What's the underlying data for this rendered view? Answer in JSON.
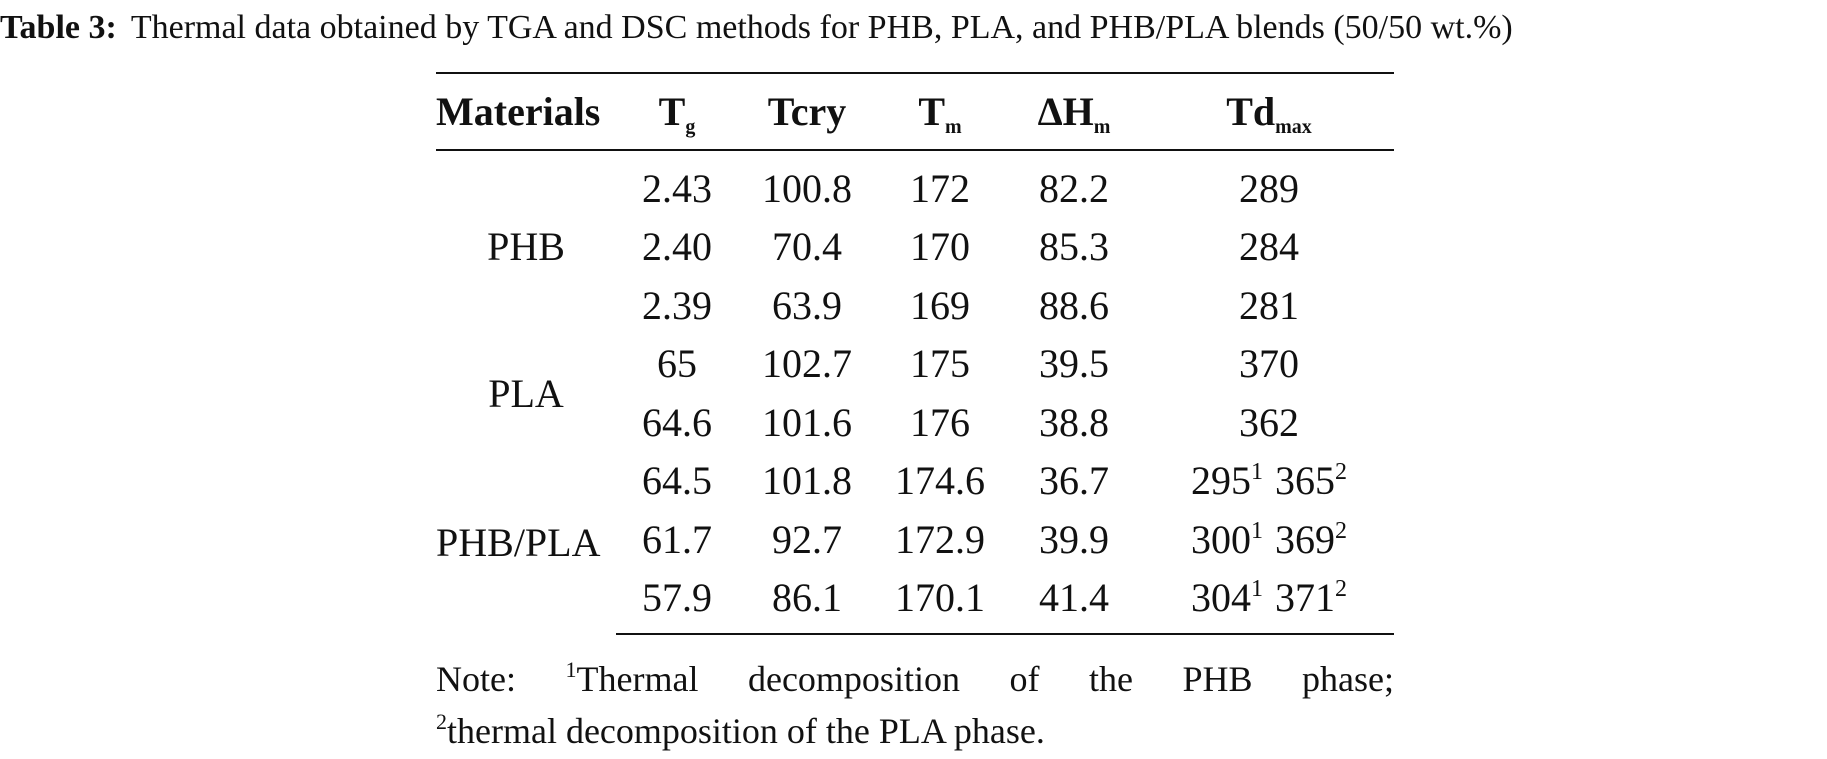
{
  "caption": {
    "label": "Table 3:",
    "text": "Thermal data obtained by TGA and DSC methods for PHB, PLA, and PHB/PLA blends (50/50 wt.%)"
  },
  "table": {
    "headers": {
      "materials": "Materials",
      "tg_main": "T",
      "tg_sub": "g",
      "tcry": "Tcry",
      "tm_main": "T",
      "tm_sub": "m",
      "dhm_main": "ΔH",
      "dhm_sub": "m",
      "tdmax_main": "Td",
      "tdmax_sub": "max"
    },
    "groups": [
      {
        "material": "PHB",
        "rows": [
          {
            "tg": "2.43",
            "tcry": "100.8",
            "tm": "172",
            "dhm": "82.2",
            "td": "289"
          },
          {
            "tg": "2.40",
            "tcry": "70.4",
            "tm": "170",
            "dhm": "85.3",
            "td": "284"
          },
          {
            "tg": "2.39",
            "tcry": "63.9",
            "tm": "169",
            "dhm": "88.6",
            "td": "281"
          }
        ]
      },
      {
        "material": "PLA",
        "rows": [
          {
            "tg": "65",
            "tcry": "102.7",
            "tm": "175",
            "dhm": "39.5",
            "td": "370"
          },
          {
            "tg": "64.6",
            "tcry": "101.6",
            "tm": "176",
            "dhm": "38.8",
            "td": "362"
          }
        ]
      },
      {
        "material": "PHB/PLA",
        "rows": [
          {
            "tg": "64.5",
            "tcry": "101.8",
            "tm": "174.6",
            "dhm": "36.7",
            "td1": "295",
            "fn1": "1",
            "td2": "365",
            "fn2": "2"
          },
          {
            "tg": "61.7",
            "tcry": "92.7",
            "tm": "172.9",
            "dhm": "39.9",
            "td1": "300",
            "fn1": "1",
            "td2": "369",
            "fn2": "2"
          },
          {
            "tg": "57.9",
            "tcry": "86.1",
            "tm": "170.1",
            "dhm": "41.4",
            "td1": "304",
            "fn1": "1",
            "td2": "371",
            "fn2": "2"
          }
        ]
      }
    ]
  },
  "note": {
    "words1": [
      "Note:",
      "Thermal",
      "decomposition",
      "of",
      "the",
      "PHB",
      "phase;"
    ],
    "fn1": "1",
    "fn2": "2",
    "line2": "thermal decomposition of the PLA phase."
  }
}
